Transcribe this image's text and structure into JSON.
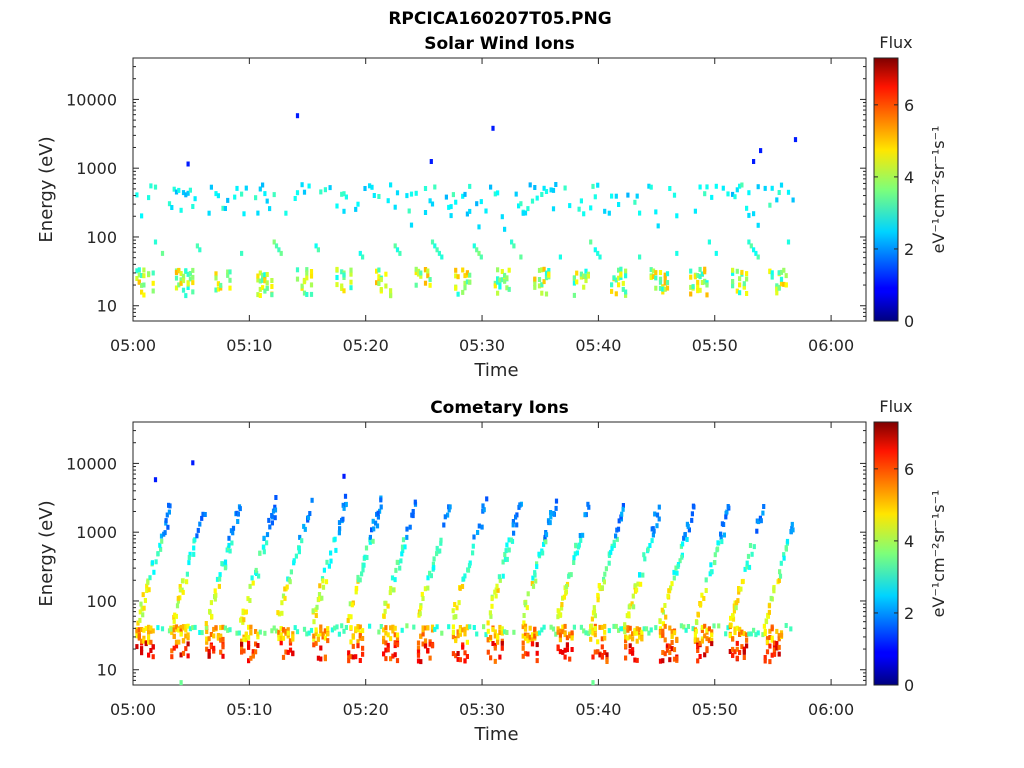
{
  "figure_title": "RPCICA160207T05.PNG",
  "chart_data": [
    {
      "type": "heatmap",
      "title": "Solar Wind Ions",
      "xlabel": "Time",
      "ylabel": "Energy (eV)",
      "x_ticks": [
        "05:00",
        "05:10",
        "05:20",
        "05:30",
        "05:40",
        "05:50",
        "06:00"
      ],
      "xlim_minutes": [
        0,
        63
      ],
      "y_ticks": [
        "10",
        "100",
        "1000",
        "10000"
      ],
      "y_scale": "log",
      "ylim": [
        6,
        40000
      ],
      "colorbar": {
        "label": "Flux",
        "units": "eV⁻¹cm⁻²sr⁻¹s⁻¹",
        "ticks": [
          "0",
          "2",
          "4",
          "6"
        ],
        "range": [
          0,
          7.3
        ]
      },
      "data_extent_minutes": [
        0.2,
        56.8
      ],
      "sweep_period_minutes": 3.4,
      "clusters": [
        {
          "name": "low-energy band",
          "energy_range": [
            12,
            35
          ],
          "typical_flux": 3.5,
          "max_flux": 5
        },
        {
          "name": "mid-energy band",
          "energy_range": [
            150,
            600
          ],
          "typical_flux": 2.6
        },
        {
          "name": "scattered high-energy",
          "energy_range": [
            1000,
            6000
          ],
          "typical_flux": 1.5
        }
      ]
    },
    {
      "type": "heatmap",
      "title": "Cometary Ions",
      "xlabel": "Time",
      "ylabel": "Energy (eV)",
      "x_ticks": [
        "05:00",
        "05:10",
        "05:20",
        "05:30",
        "05:40",
        "05:50",
        "06:00"
      ],
      "xlim_minutes": [
        0,
        63
      ],
      "y_ticks": [
        "10",
        "100",
        "1000",
        "10000"
      ],
      "y_scale": "log",
      "ylim": [
        6,
        40000
      ],
      "colorbar": {
        "label": "Flux",
        "units": "eV⁻¹cm⁻²sr⁻¹s⁻¹",
        "ticks": [
          "0",
          "2",
          "4",
          "6"
        ],
        "range": [
          0,
          7.3
        ]
      },
      "data_extent_minutes": [
        0.2,
        56.8
      ],
      "sweep_period_minutes": 3.0,
      "clusters": [
        {
          "name": "low-energy band",
          "energy_range": [
            12,
            45
          ],
          "typical_flux": 5,
          "max_flux": 6.8
        },
        {
          "name": "rising arcs",
          "energy_range": [
            50,
            3500
          ],
          "typical_flux": 2.8
        }
      ]
    }
  ]
}
